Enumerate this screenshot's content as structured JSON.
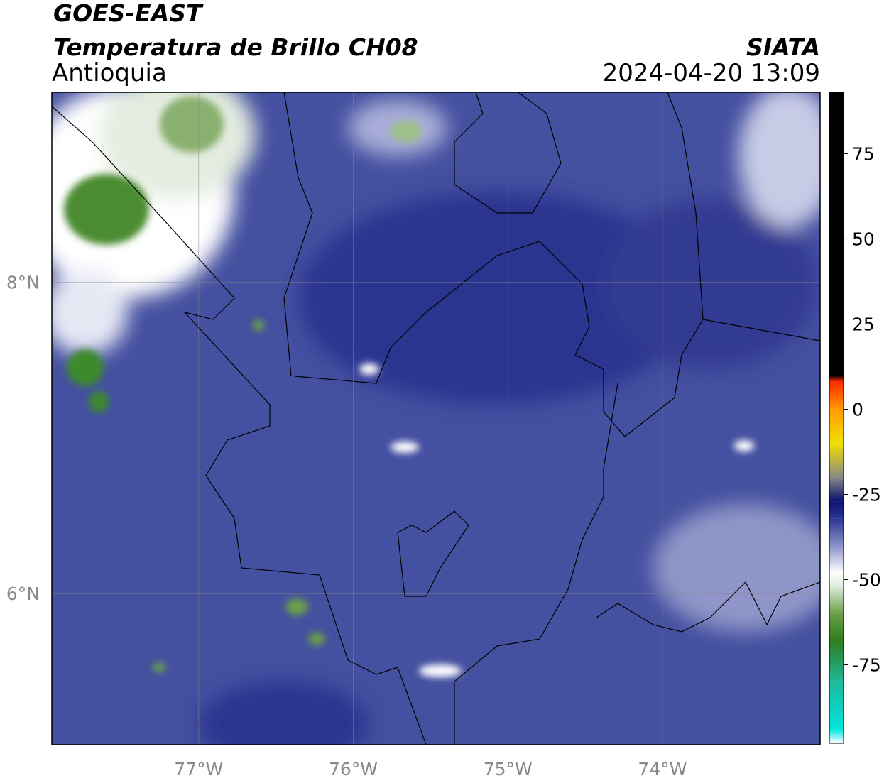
{
  "header": {
    "satellite": "GOES-EAST",
    "product": "Temperatura de Brillo CH08",
    "region": "Antioquia",
    "source": "SIATA",
    "datetime": "2024-04-20 13:09"
  },
  "map": {
    "xlim": [
      -77.95,
      -72.98
    ],
    "ylim": [
      5.03,
      9.22
    ],
    "xticks": [
      {
        "value": -77,
        "label": "77°W"
      },
      {
        "value": -76,
        "label": "76°W"
      },
      {
        "value": -75,
        "label": "75°W"
      },
      {
        "value": -74,
        "label": "74°W"
      }
    ],
    "yticks": [
      {
        "value": 8,
        "label": "8°N"
      },
      {
        "value": 6,
        "label": "6°N"
      }
    ],
    "grid": true
  },
  "colorbar": {
    "lim": [
      -98,
      93
    ],
    "ticks": [
      75,
      50,
      25,
      0,
      -25,
      -50,
      -75
    ],
    "colormap": [
      {
        "value": -98,
        "color": "#ffffff"
      },
      {
        "value": -94,
        "color": "#00e5e0"
      },
      {
        "value": -80,
        "color": "#1fb89a"
      },
      {
        "value": -68,
        "color": "#2e7d1e"
      },
      {
        "value": -60,
        "color": "#6aa04a"
      },
      {
        "value": -52,
        "color": "#dfeadb"
      },
      {
        "value": -48,
        "color": "#ffffff"
      },
      {
        "value": -40,
        "color": "#8a90c8"
      },
      {
        "value": -32,
        "color": "#2a3592"
      },
      {
        "value": -27,
        "color": "#0c106e"
      },
      {
        "value": -20,
        "color": "#888888"
      },
      {
        "value": -10,
        "color": "#f0e000"
      },
      {
        "value": 0,
        "color": "#ff9a00"
      },
      {
        "value": 8,
        "color": "#ff2a00"
      },
      {
        "value": 10,
        "color": "#000000"
      },
      {
        "value": 93,
        "color": "#000000"
      }
    ]
  }
}
